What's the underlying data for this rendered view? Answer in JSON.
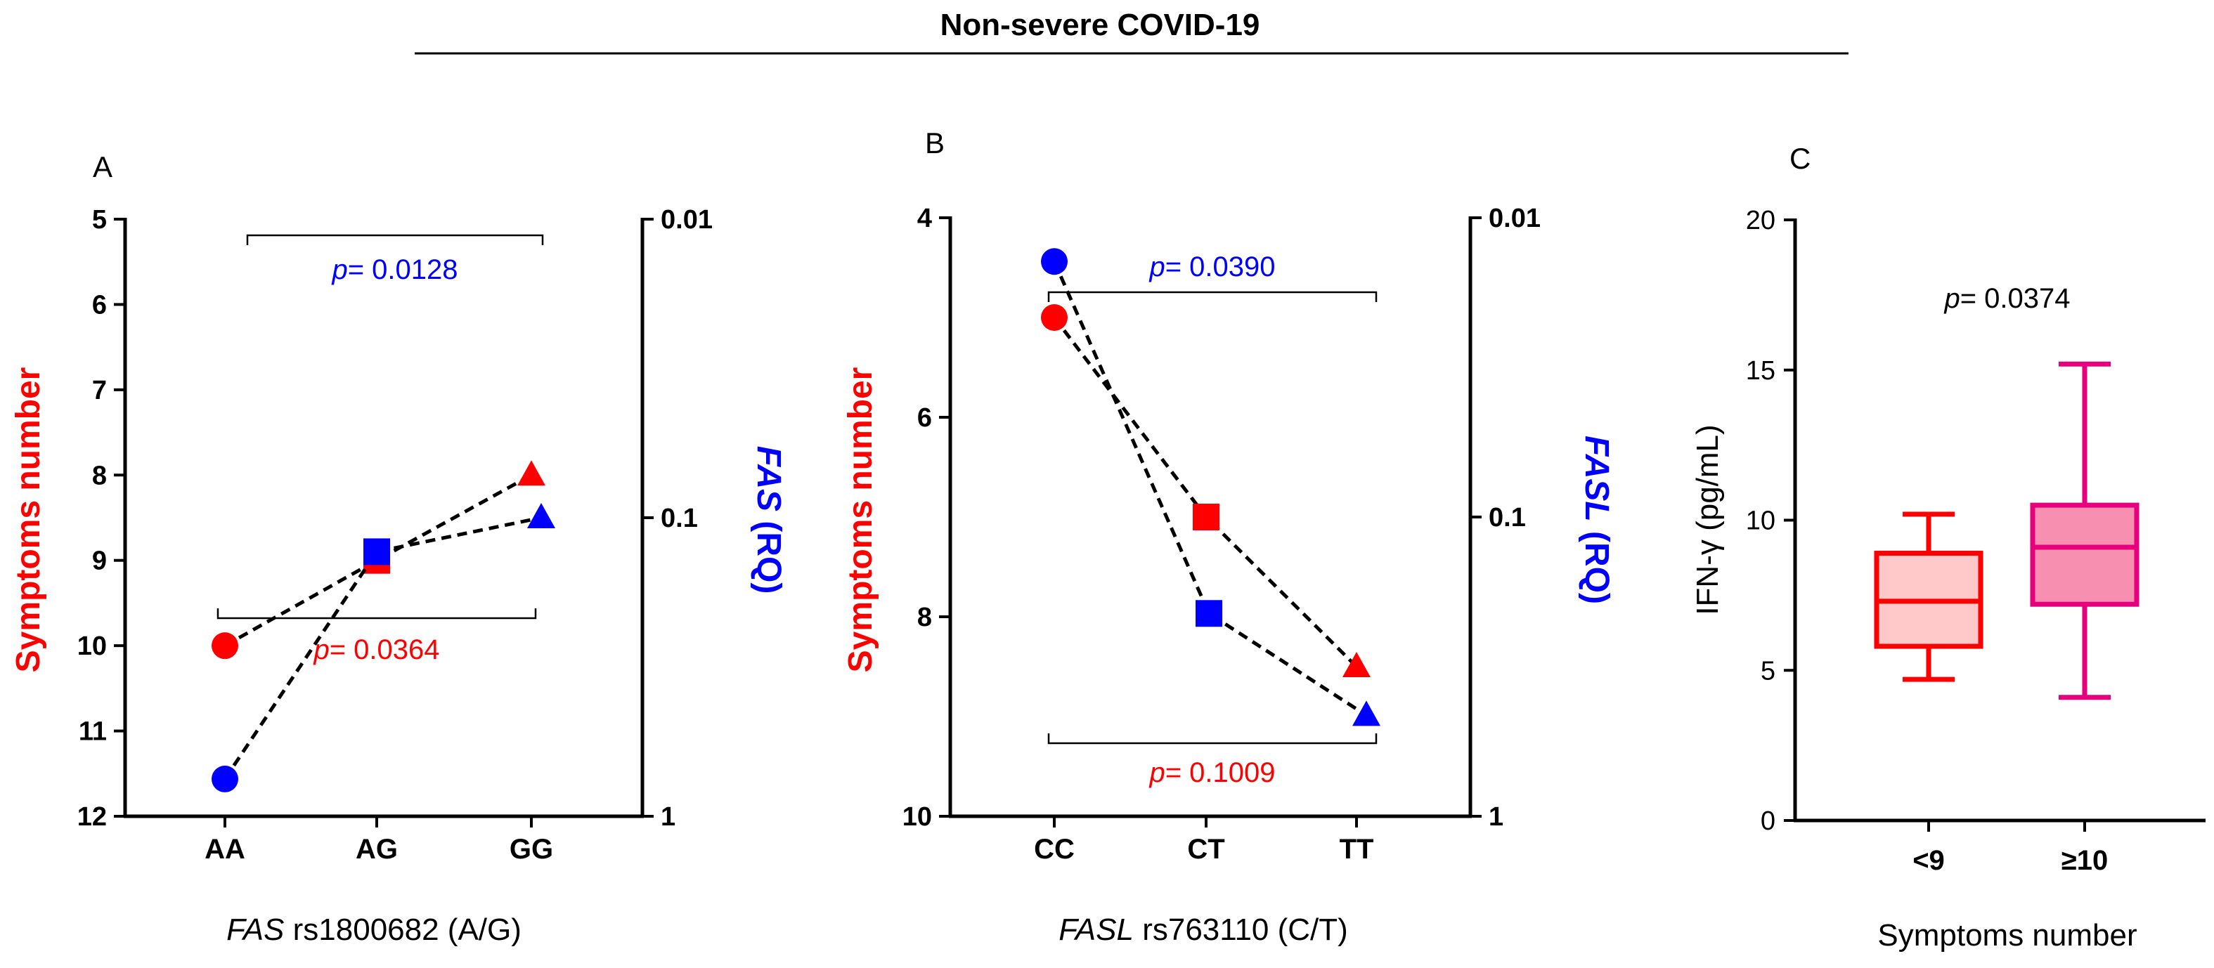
{
  "title": "Non-severe COVID-19",
  "colors": {
    "red": "#ff0000",
    "blue": "#0000ff",
    "box1_fill": "#ffc9c9",
    "box2_fill": "#f78fb1",
    "box2_stroke": "#e6007e",
    "axis": "#000000"
  },
  "chart_data": [
    {
      "panel": "A",
      "type": "line",
      "categories": [
        "AA",
        "AG",
        "GG"
      ],
      "xlabel_gene": "FAS",
      "xlabel_rest": " rs1800682 (A/G)",
      "ylabel": "Symptoms number",
      "ylabel_right_gene": "FAS",
      "ylabel_right_rest": " (RQ)",
      "ylim": [
        5,
        12
      ],
      "yticks": [
        "5",
        "6",
        "7",
        "8",
        "9",
        "10",
        "11",
        "12"
      ],
      "y2lim_log": [
        0.01,
        1
      ],
      "y2ticks": [
        "0.01",
        "0.1",
        "1"
      ],
      "series": [
        {
          "name": "Symptoms number",
          "axis": "left",
          "color": "red",
          "values": [
            10,
            9,
            8
          ],
          "markers": [
            "circle",
            "square",
            "triangle"
          ]
        },
        {
          "name": "FAS (RQ)",
          "axis": "right",
          "color": "blue",
          "values": [
            0.75,
            0.13,
            0.1
          ],
          "markers": [
            "circle",
            "square",
            "triangle"
          ]
        }
      ],
      "pvalues": [
        {
          "label": "p",
          "value": "= 0.0128",
          "color": "blue",
          "from": 0,
          "to": 2,
          "side": "top"
        },
        {
          "label": "p",
          "value": "= 0.0364",
          "color": "red",
          "from": 0,
          "to": 2,
          "side": "bottom"
        }
      ]
    },
    {
      "panel": "B",
      "type": "line",
      "categories": [
        "CC",
        "CT",
        "TT"
      ],
      "xlabel_gene": "FASL",
      "xlabel_rest": " rs763110 (C/T)",
      "ylabel": "Symptoms number",
      "ylabel_right_gene": "FASL",
      "ylabel_right_rest": " (RQ)",
      "ylim": [
        4,
        10
      ],
      "yticks": [
        "4",
        "6",
        "8",
        "10"
      ],
      "y2lim_log": [
        0.01,
        1
      ],
      "y2ticks": [
        "0.01",
        "0.1",
        "1"
      ],
      "series": [
        {
          "name": "Symptoms number",
          "axis": "left",
          "color": "red",
          "values": [
            5,
            7,
            8.5
          ],
          "markers": [
            "circle",
            "square",
            "triangle"
          ]
        },
        {
          "name": "FASL (RQ)",
          "axis": "right",
          "color": "blue",
          "values": [
            0.014,
            0.21,
            0.46
          ],
          "markers": [
            "circle",
            "square",
            "triangle"
          ]
        }
      ],
      "pvalues": [
        {
          "label": "p",
          "value": "= 0.0390",
          "color": "blue",
          "from": 0,
          "to": 2,
          "side": "top"
        },
        {
          "label": "p",
          "value": "= 0.1009",
          "color": "red",
          "from": 0,
          "to": 2,
          "side": "bottom"
        }
      ]
    },
    {
      "panel": "C",
      "type": "box",
      "categories": [
        "<9",
        "≥10"
      ],
      "xlabel": "Symptoms number",
      "ylabel": "IFN-γ (pg/mL)",
      "ylim": [
        0,
        20
      ],
      "yticks": [
        "0",
        "5",
        "10",
        "15",
        "20"
      ],
      "boxes": [
        {
          "name": "<9",
          "min": 4.7,
          "q1": 5.8,
          "median": 7.3,
          "q3": 8.9,
          "max": 10.2
        },
        {
          "name": "≥10",
          "min": 4.1,
          "q1": 7.2,
          "median": 9.1,
          "q3": 10.5,
          "max": 15.2
        }
      ],
      "pvalues": [
        {
          "label": "p",
          "value": "= 0.0374",
          "color": "black"
        }
      ]
    }
  ]
}
